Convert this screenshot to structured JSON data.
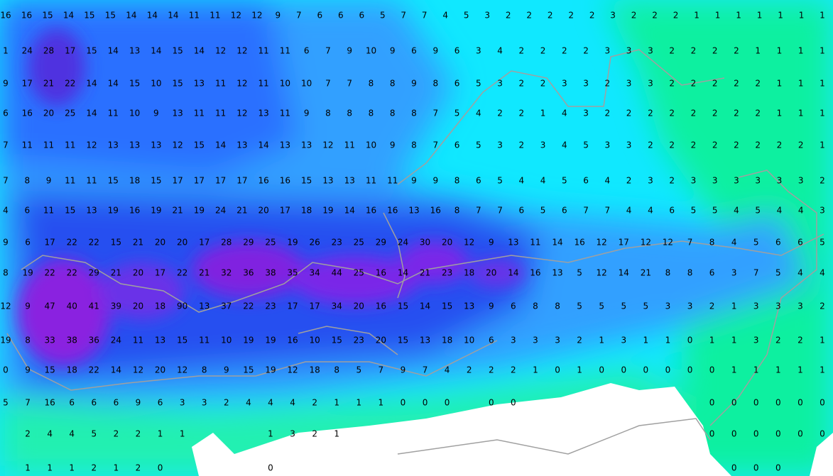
{
  "map": {
    "rows": [
      [
        16,
        16,
        15,
        14,
        15,
        15,
        14,
        14,
        14,
        11,
        11,
        12,
        12,
        9,
        7,
        6,
        6,
        6,
        5,
        7,
        7,
        4,
        5,
        3,
        2,
        2,
        2,
        2,
        2,
        3,
        2,
        2,
        2,
        1,
        1,
        1,
        1,
        1,
        1,
        1
      ],
      [
        1,
        24,
        28,
        17,
        15,
        14,
        13,
        14,
        15,
        14,
        12,
        12,
        11,
        11,
        6,
        7,
        9,
        10,
        9,
        6,
        9,
        6,
        3,
        4,
        2,
        2,
        2,
        2,
        3,
        3,
        3,
        2,
        2,
        2,
        2,
        1,
        1,
        1,
        1
      ],
      [
        9,
        17,
        21,
        22,
        14,
        14,
        15,
        10,
        15,
        13,
        11,
        12,
        11,
        10,
        10,
        7,
        7,
        8,
        8,
        9,
        8,
        6,
        5,
        3,
        2,
        2,
        3,
        3,
        2,
        3,
        3,
        2,
        2,
        2,
        2,
        2,
        1,
        1,
        1
      ],
      [
        6,
        16,
        20,
        25,
        14,
        11,
        10,
        9,
        13,
        11,
        11,
        12,
        13,
        11,
        9,
        8,
        8,
        8,
        8,
        8,
        7,
        5,
        4,
        2,
        2,
        1,
        4,
        3,
        2,
        2,
        2,
        2,
        2,
        2,
        2,
        2,
        1,
        1,
        1
      ],
      [
        7,
        11,
        11,
        11,
        12,
        13,
        13,
        13,
        12,
        15,
        14,
        13,
        14,
        13,
        13,
        12,
        11,
        10,
        9,
        8,
        7,
        6,
        5,
        3,
        2,
        3,
        4,
        5,
        3,
        3,
        2,
        2,
        2,
        2,
        2,
        2,
        2,
        2,
        1
      ],
      [
        7,
        8,
        9,
        11,
        11,
        15,
        18,
        15,
        17,
        17,
        17,
        17,
        16,
        16,
        15,
        13,
        13,
        11,
        11,
        9,
        9,
        8,
        6,
        5,
        4,
        4,
        5,
        6,
        4,
        2,
        3,
        2,
        3,
        3,
        3,
        3,
        3,
        3,
        2
      ],
      [
        4,
        6,
        11,
        15,
        13,
        19,
        16,
        19,
        21,
        19,
        24,
        21,
        20,
        17,
        18,
        19,
        14,
        16,
        16,
        13,
        16,
        8,
        7,
        7,
        6,
        5,
        6,
        7,
        7,
        4,
        4,
        6,
        5,
        5,
        4,
        5,
        4,
        4,
        3
      ],
      [
        9,
        6,
        17,
        22,
        22,
        15,
        21,
        20,
        20,
        17,
        28,
        29,
        25,
        19,
        26,
        23,
        25,
        29,
        24,
        30,
        20,
        12,
        9,
        13,
        11,
        14,
        16,
        12,
        17,
        12,
        12,
        7,
        8,
        4,
        5,
        6,
        6,
        5
      ],
      [
        8,
        19,
        22,
        22,
        29,
        21,
        20,
        17,
        22,
        21,
        32,
        36,
        38,
        35,
        34,
        44,
        25,
        16,
        14,
        21,
        23,
        18,
        20,
        14,
        16,
        13,
        5,
        12,
        14,
        21,
        8,
        8,
        6,
        3,
        7,
        5,
        4,
        4
      ],
      [
        12,
        9,
        47,
        40,
        41,
        39,
        20,
        18,
        90,
        13,
        37,
        22,
        23,
        17,
        17,
        34,
        20,
        16,
        15,
        14,
        15,
        13,
        9,
        6,
        8,
        8,
        5,
        5,
        5,
        5,
        3,
        3,
        2,
        1,
        3,
        3,
        3,
        2
      ],
      [
        19,
        8,
        33,
        38,
        36,
        24,
        11,
        13,
        15,
        11,
        10,
        19,
        19,
        16,
        10,
        15,
        23,
        20,
        15,
        13,
        18,
        10,
        6,
        3,
        3,
        3,
        2,
        1,
        3,
        1,
        1,
        0,
        1,
        1,
        3,
        2,
        2,
        1
      ],
      [
        0,
        9,
        15,
        18,
        22,
        14,
        12,
        20,
        12,
        8,
        9,
        15,
        19,
        12,
        18,
        8,
        5,
        7,
        9,
        7,
        4,
        2,
        2,
        2,
        1,
        0,
        1,
        0,
        0,
        0,
        0,
        0,
        0,
        1,
        1,
        1,
        1,
        1
      ],
      [
        5,
        7,
        16,
        6,
        6,
        6,
        9,
        6,
        3,
        3,
        2,
        4,
        4,
        4,
        2,
        1,
        1,
        1,
        0,
        0,
        0,
        null,
        0,
        0,
        null,
        null,
        null,
        null,
        null,
        null,
        null,
        null,
        0,
        0,
        0,
        0,
        0,
        0
      ],
      [
        null,
        2,
        4,
        4,
        5,
        2,
        2,
        1,
        1,
        null,
        null,
        null,
        1,
        3,
        2,
        1,
        null,
        null,
        null,
        null,
        null,
        null,
        null,
        null,
        null,
        null,
        null,
        null,
        null,
        null,
        null,
        null,
        0,
        0,
        0,
        0,
        0,
        0
      ],
      [
        null,
        1,
        1,
        1,
        2,
        1,
        2,
        0,
        null,
        null,
        null,
        null,
        0,
        null,
        null,
        null,
        null,
        null,
        null,
        null,
        null,
        null,
        null,
        null,
        null,
        null,
        null,
        null,
        null,
        null,
        null,
        null,
        null,
        0,
        0,
        0,
        null,
        null
      ]
    ]
  }
}
